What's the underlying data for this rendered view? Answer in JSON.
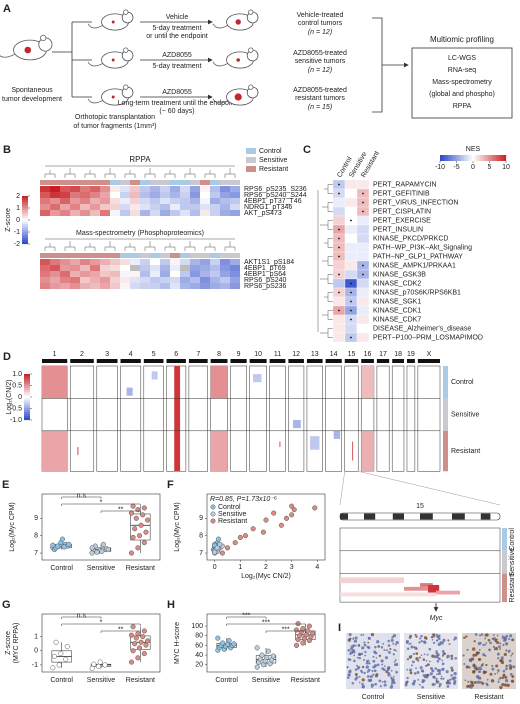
{
  "panel_a": {
    "label": "A",
    "spontaneous": [
      "Spontaneous",
      "tumor development"
    ],
    "transplant": [
      "Orthotopic transplantation",
      "of tumor fragments (1mm³)"
    ],
    "arms": [
      {
        "drug": "Vehicle",
        "schedule": [
          "5-day treatment",
          "or until the endpoint"
        ],
        "outcome": [
          "Vehicle-treated",
          "control tumors"
        ],
        "n": "(n = 12)"
      },
      {
        "drug": "AZD8055",
        "schedule": [
          "5-day treatment"
        ],
        "outcome": [
          "AZD8055-treated",
          "sensitive tumors"
        ],
        "n": "(n = 12)"
      },
      {
        "drug": "AZD8055",
        "schedule": [
          "Long-term treatment until the endpoint",
          "(~ 60 days)"
        ],
        "outcome": [
          "AZD8055-treated",
          "resistant tumors"
        ],
        "n": "(n = 15)"
      }
    ],
    "profiling": {
      "title": "Multiomic profiling",
      "items": [
        "LC-WGS",
        "RNA-seq",
        "Mass-spectrometry",
        "(global and phospho)",
        "RPPA"
      ]
    }
  },
  "panel_b": {
    "label": "B",
    "legend": [
      "Control",
      "Sensitive",
      "Resistant"
    ],
    "group_colors": [
      "#a9cbe6",
      "#c9c9cf",
      "#cf8f8a"
    ],
    "colorbar": {
      "title": "Z-score",
      "lim": [
        -2,
        2
      ],
      "ticks": [
        2,
        1,
        0,
        -1,
        -2
      ]
    },
    "heatmaps": [
      {
        "title": "RPPA",
        "rows": [
          "RPS6_pS235_S236",
          "RPS6_pS240_S244",
          "4EBP1_pT37_T46",
          "NDRG1_pT346",
          "AKT_pS473"
        ],
        "column_groups": [
          2,
          2,
          2,
          2,
          2,
          2,
          2,
          0,
          1,
          2,
          0,
          1,
          1,
          0,
          0,
          1,
          2,
          0,
          1,
          1
        ],
        "values": [
          [
            1.8,
            2.0,
            1.5,
            1.6,
            1.2,
            1.4,
            1.0,
            0.2,
            -0.3,
            0.5,
            -0.6,
            -0.8,
            -0.5,
            -0.9,
            -0.4,
            -1.0,
            0.1,
            -0.7,
            -1.2,
            -0.9
          ],
          [
            1.5,
            1.8,
            1.7,
            1.2,
            1.3,
            1.1,
            0.8,
            0.0,
            -0.5,
            0.6,
            -0.7,
            -0.9,
            -0.6,
            -0.8,
            -0.5,
            -1.1,
            0.0,
            -0.6,
            -1.0,
            -1.1
          ],
          [
            1.2,
            1.0,
            1.4,
            0.9,
            1.1,
            0.7,
            0.9,
            0.3,
            -0.2,
            0.4,
            -0.4,
            -0.6,
            -0.3,
            -0.5,
            -0.6,
            -0.8,
            -0.1,
            -0.9,
            -0.7,
            -0.6
          ],
          [
            1.0,
            1.3,
            0.8,
            1.1,
            0.6,
            0.9,
            0.5,
            0.4,
            -0.4,
            0.2,
            -0.3,
            -0.5,
            -0.7,
            -0.2,
            -0.6,
            -0.6,
            -0.3,
            -0.5,
            -0.8,
            -0.4
          ],
          [
            1.4,
            0.9,
            1.1,
            0.7,
            1.0,
            0.6,
            1.2,
            -0.1,
            -0.6,
            0.3,
            -0.8,
            -0.4,
            -0.9,
            -0.6,
            -0.3,
            -0.7,
            0.2,
            -0.5,
            -0.9,
            -1.0
          ]
        ]
      },
      {
        "title": "Mass-spectrometry (Phosphoproteomics)",
        "rows": [
          "AKT1S1_pS184",
          "4EBP1_pT69",
          "4EBP1_pS64",
          "RPS6_pS240",
          "RPS6_pS236"
        ],
        "column_groups": [
          2,
          2,
          2,
          2,
          2,
          2,
          2,
          2,
          0,
          0,
          1,
          0,
          1,
          2,
          0,
          1,
          1,
          0,
          1,
          1
        ],
        "values": [
          [
            1.5,
            1.2,
            1.0,
            0.8,
            1.1,
            0.9,
            0.7,
            0.5,
            0.3,
            -0.2,
            -0.5,
            0,
            -0.6,
            0.1,
            -0.4,
            -0.8,
            -1.0,
            -0.5,
            -1.2,
            -0.9
          ],
          [
            1.3,
            1.5,
            0.9,
            1.0,
            0.6,
            1.2,
            0.4,
            0.3,
            0,
            null,
            -0.6,
            -0.3,
            -0.8,
            -0.2,
            null,
            -1.0,
            -0.9,
            -0.7,
            -1.1,
            -1.3
          ],
          [
            1.2,
            1.0,
            1.3,
            0.7,
            0.9,
            0.8,
            0.5,
            0.6,
            -0.1,
            0.1,
            -0.7,
            -0.2,
            -0.9,
            0,
            -0.6,
            -1.1,
            -0.8,
            -0.6,
            -1.0,
            -1.2
          ],
          [
            1.0,
            0.8,
            1.1,
            1.2,
            0.5,
            0.7,
            0.9,
            0.4,
            0.2,
            -0.3,
            -0.4,
            -0.6,
            -0.5,
            -0.4,
            -0.9,
            -0.7,
            -1.2,
            -0.8,
            -0.6,
            -1.0
          ],
          [
            1.1,
            0.9,
            0.8,
            1.0,
            0.7,
            0.6,
            0.8,
            0.5,
            0.1,
            -0.4,
            -0.5,
            -0.5,
            -0.7,
            -0.3,
            -0.8,
            -0.9,
            -1.1,
            -0.9,
            -0.8,
            -1.1
          ]
        ]
      }
    ]
  },
  "panel_c": {
    "label": "C",
    "colorbar": {
      "title": "NES",
      "lim": [
        -10,
        10
      ],
      "ticks": [
        -10,
        -5,
        0,
        5,
        10
      ]
    },
    "columns": [
      "Control",
      "Sensitive",
      "Resistant"
    ],
    "rows": [
      "PERT_RAPAMYCIN",
      "PERT_GEFITINIB",
      "PERT_VIRUS_INFECTION",
      "PERT_CISPLATIN",
      "PERT_EXERCISE",
      "PERT_INSULIN",
      "KINASE_PKCD/PRKCD",
      "PATH−WP_PI3K−Akt_Signaling",
      "PATH−NP_GLP1_PATHWAY",
      "KINASE_AMPK1/PRKAA1",
      "KINASE_GSK3B",
      "KINASE_CDK2",
      "KINASE_p70S6K/RPS6KB1",
      "KINASE_SGK1",
      "KINASE_CDK1",
      "KINASE_CDK7",
      "DISEASE_Alzheimer's_disease",
      "PERT−P100−PRM_LOSMAPIMOD"
    ],
    "values": [
      [
        -3,
        1,
        1
      ],
      [
        -2,
        0,
        3
      ],
      [
        -1,
        1,
        3
      ],
      [
        -2,
        0,
        3
      ],
      [
        2,
        0,
        -1
      ],
      [
        4,
        -1,
        -2
      ],
      [
        3,
        0,
        -2
      ],
      [
        3,
        -1,
        -1
      ],
      [
        3,
        -1,
        -1
      ],
      [
        2,
        1,
        -4
      ],
      [
        2,
        -2,
        -4
      ],
      [
        -3,
        -9,
        -2
      ],
      [
        2,
        -4,
        -1
      ],
      [
        1,
        -3,
        1
      ],
      [
        4,
        -5,
        -1
      ],
      [
        1,
        -2,
        1
      ],
      [
        1,
        -2,
        0
      ],
      [
        1,
        -3,
        1
      ]
    ],
    "significant": [
      [
        true,
        false,
        false
      ],
      [
        true,
        false,
        true
      ],
      [
        false,
        false,
        true
      ],
      [
        false,
        false,
        true
      ],
      [
        false,
        true,
        false
      ],
      [
        true,
        false,
        false
      ],
      [
        true,
        false,
        false
      ],
      [
        true,
        false,
        false
      ],
      [
        true,
        false,
        false
      ],
      [
        false,
        false,
        true
      ],
      [
        true,
        false,
        true
      ],
      [
        false,
        true,
        false
      ],
      [
        true,
        true,
        false
      ],
      [
        false,
        true,
        false
      ],
      [
        true,
        true,
        false
      ],
      [
        false,
        true,
        false
      ],
      [
        false,
        false,
        false
      ],
      [
        false,
        true,
        false
      ]
    ]
  },
  "panel_d": {
    "label": "D",
    "chromosomes": [
      "1",
      "2",
      "3",
      "4",
      "5",
      "6",
      "7",
      "8",
      "9",
      "10",
      "11",
      "12",
      "13",
      "14",
      "15",
      "16",
      "17",
      "18",
      "19",
      "X"
    ],
    "chromosome_sizes": [
      195,
      182,
      160,
      157,
      152,
      150,
      145,
      130,
      125,
      131,
      122,
      120,
      121,
      125,
      104,
      98,
      95,
      91,
      61,
      171
    ],
    "groups": [
      "Control",
      "Sensitive",
      "Resistant"
    ],
    "group_rows": [
      12,
      12,
      15
    ],
    "colorbar": {
      "title": "Log₂(CN/2)",
      "lim": [
        -1,
        1
      ],
      "ticks": [
        {
          "value": 1,
          "label": "1.0"
        },
        0.5,
        0,
        -0.5,
        {
          "value": -1,
          "label": "-1.0"
        }
      ]
    },
    "segments": [
      [
        0,
        0,
        11,
        0,
        1,
        0.5
      ],
      [
        0,
        24,
        38,
        0,
        1,
        0.4
      ],
      [
        5,
        0,
        38,
        0.4,
        0.7,
        0.9
      ],
      [
        7,
        0,
        11,
        0,
        1,
        0.5
      ],
      [
        7,
        24,
        38,
        0,
        1,
        0.4
      ],
      [
        15,
        0,
        11,
        0,
        1,
        0.3
      ],
      [
        15,
        24,
        38,
        0,
        1,
        0.35
      ],
      [
        14,
        28,
        34,
        0.55,
        0.62,
        0.8
      ],
      [
        1,
        30,
        32,
        0.3,
        0.35,
        0.7
      ],
      [
        3,
        8,
        10,
        0.3,
        0.6,
        -0.4
      ],
      [
        9,
        3,
        5,
        0.2,
        0.7,
        -0.3
      ],
      [
        11,
        20,
        22,
        0.3,
        0.8,
        -0.4
      ],
      [
        12,
        26,
        30,
        0.2,
        0.8,
        -0.3
      ],
      [
        13,
        24,
        26,
        0.5,
        0.9,
        -0.4
      ],
      [
        4,
        2,
        4,
        0.4,
        0.7,
        -0.3
      ],
      [
        10,
        28,
        29,
        0.6,
        0.7,
        0.5
      ]
    ]
  },
  "panel_d_zoom": {
    "chromosome": "15",
    "groups": [
      "Control",
      "Sensitive",
      "Resistant"
    ],
    "gene": "Myc",
    "gene_position": 0.6,
    "segments": [
      [
        26,
        28,
        0.0,
        0.4,
        0.2
      ],
      [
        29,
        30,
        0.5,
        0.58,
        0.6
      ],
      [
        30,
        33,
        0.55,
        0.62,
        0.9
      ],
      [
        31,
        32,
        0.4,
        0.55,
        0.5
      ],
      [
        34,
        35,
        0.0,
        0.6,
        0.15
      ],
      [
        33,
        34,
        0.6,
        0.75,
        0.4
      ]
    ]
  },
  "chart_data": [
    {
      "panel": "E",
      "type": "box",
      "ylabel": [
        "Log₂(Myc CPM)"
      ],
      "categories": [
        "Control",
        "Sensitive",
        "Resistant"
      ],
      "colors": [
        "#8cc3e3",
        "#b9cde0",
        "#d98b84"
      ],
      "values": [
        [
          7.3,
          7.4,
          7.5,
          7.2,
          7.6,
          7.4,
          7.3,
          7.8,
          7.5,
          7.4,
          7.35,
          7.45
        ],
        [
          7.0,
          7.1,
          7.2,
          7.3,
          7.15,
          7.25,
          7.4,
          7.1,
          7.2,
          7.05,
          7.5,
          7.3
        ],
        [
          7.0,
          7.3,
          7.6,
          7.9,
          8.0,
          8.2,
          8.4,
          8.6,
          8.9,
          9.0,
          9.2,
          9.3,
          9.5,
          9.6,
          9.7
        ]
      ],
      "boxes": [
        {
          "low": 7.2,
          "q1": 7.3,
          "median": 7.4,
          "q3": 7.5,
          "high": 7.8
        },
        {
          "low": 7.0,
          "q1": 7.1,
          "median": 7.2,
          "q3": 7.3,
          "high": 7.5
        },
        {
          "low": 7.0,
          "q1": 7.75,
          "median": 8.6,
          "q3": 9.25,
          "high": 9.7
        }
      ],
      "ylim": [
        6.6,
        10.4
      ],
      "yticks": [
        7,
        8,
        9
      ],
      "annotations": [
        {
          "text": "n.s",
          "from": 0,
          "to": 1
        },
        {
          "text": "*",
          "from": 0,
          "to": 2
        },
        {
          "text": "**",
          "from": 1,
          "to": 2
        }
      ]
    },
    {
      "panel": "F",
      "type": "scatter",
      "annotation": "R=0.85, P=1.73x10⁻⁶",
      "xlabel": "Log₂(Myc CN/2)",
      "ylabel": [
        "Log₂(Myc CPM)"
      ],
      "series": [
        {
          "name": "Control",
          "color": "#8cc3e3",
          "x": [
            0.0,
            0.05,
            0.1,
            -0.05,
            0.1,
            0.0,
            0.05,
            0.15,
            0.0,
            0.1,
            0.05,
            0.0
          ],
          "values": [
            7.3,
            7.4,
            7.5,
            7.2,
            7.6,
            7.4,
            7.3,
            7.8,
            7.5,
            7.4,
            7.35,
            7.45
          ]
        },
        {
          "name": "Sensitive",
          "color": "#b9cde0",
          "x": [
            0.0,
            0.1,
            0.05,
            0.2,
            0.0,
            0.15,
            0.3,
            0.1,
            0.05,
            0.0,
            0.2,
            0.1
          ],
          "values": [
            7.0,
            7.1,
            7.2,
            7.3,
            7.15,
            7.25,
            7.4,
            7.1,
            7.2,
            7.05,
            7.5,
            7.3
          ]
        },
        {
          "name": "Resistant",
          "color": "#d98b84",
          "x": [
            0.3,
            0.5,
            0.8,
            1.0,
            1.2,
            1.9,
            1.5,
            2.6,
            2.0,
            2.8,
            3.0,
            2.3,
            3.1,
            3.9,
            3.0
          ],
          "values": [
            7.0,
            7.3,
            7.6,
            7.9,
            8.0,
            8.2,
            8.4,
            8.6,
            8.9,
            9.0,
            9.2,
            9.3,
            9.5,
            9.6,
            9.7
          ]
        }
      ],
      "xlim": [
        -0.3,
        4.3
      ],
      "xticks": [
        0,
        1,
        2,
        3,
        4
      ],
      "ylim": [
        6.6,
        10.4
      ],
      "yticks": [
        7,
        8,
        9
      ]
    },
    {
      "panel": "G",
      "type": "box",
      "ylabel": [
        "Z-score",
        "(MYC RPPA)"
      ],
      "categories": [
        "Control",
        "Sensitive",
        "Resistant"
      ],
      "colors": [
        "#ffffff",
        "#ffffff",
        "#d98b84"
      ],
      "values": [
        [
          -1.2,
          -1.0,
          -0.6,
          -0.4,
          -0.2,
          0.3,
          0.6
        ],
        [
          -1.25,
          -1.1,
          -1.0,
          -0.95,
          -0.8
        ],
        [
          -0.8,
          -0.5,
          -0.2,
          0.0,
          0.2,
          0.4,
          0.5,
          0.6,
          0.7,
          0.9,
          1.0,
          1.1,
          1.2,
          1.4,
          1.7
        ]
      ],
      "boxes": [
        {
          "low": -1.2,
          "q1": -0.8,
          "median": -0.4,
          "q3": 0.0,
          "high": 0.6
        },
        {
          "low": -1.25,
          "q1": -1.1,
          "median": -1.0,
          "q3": -0.95,
          "high": -0.8
        },
        {
          "low": -0.8,
          "q1": 0.1,
          "median": 0.6,
          "q3": 1.05,
          "high": 1.7
        }
      ],
      "ylim": [
        -1.5,
        2.6
      ],
      "yticks": [
        1,
        0,
        -1
      ],
      "annotations": [
        {
          "text": "n.s",
          "from": 0,
          "to": 1
        },
        {
          "text": "*",
          "from": 0,
          "to": 2
        },
        {
          "text": "**",
          "from": 1,
          "to": 2
        }
      ]
    },
    {
      "panel": "H",
      "type": "box",
      "ylabel": [
        "MYC H-score"
      ],
      "categories": [
        "Control",
        "Sensitive",
        "Resistant"
      ],
      "colors": [
        "#8cc3e3",
        "#b9cde0",
        "#d98b84"
      ],
      "values": [
        [
          50,
          52,
          55,
          56,
          58,
          60,
          60,
          62,
          63,
          65,
          70,
          75
        ],
        [
          15,
          20,
          22,
          25,
          28,
          30,
          32,
          35,
          38,
          40,
          48,
          55
        ],
        [
          60,
          65,
          70,
          72,
          75,
          78,
          80,
          82,
          85,
          88,
          90,
          92,
          95,
          100,
          105
        ]
      ],
      "boxes": [
        {
          "low": 50,
          "q1": 55.5,
          "median": 60,
          "q3": 64,
          "high": 75
        },
        {
          "low": 15,
          "q1": 23.5,
          "median": 31,
          "q3": 39,
          "high": 55
        },
        {
          "low": 60,
          "q1": 72,
          "median": 82,
          "q3": 90,
          "high": 105
        }
      ],
      "ylim": [
        5,
        125
      ],
      "yticks": [
        20,
        40,
        60,
        80,
        100
      ],
      "annotations": [
        {
          "text": "***",
          "from": 0,
          "to": 1
        },
        {
          "text": "***",
          "from": 0,
          "to": 2
        },
        {
          "text": "***",
          "from": 1,
          "to": 2
        }
      ]
    }
  ],
  "panel_i": {
    "label": "I",
    "images": [
      "Control",
      "Sensitive",
      "Resistant"
    ]
  }
}
